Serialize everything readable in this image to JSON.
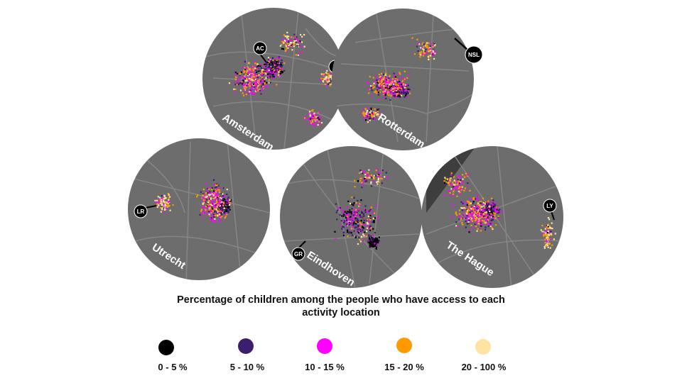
{
  "cities": [
    {
      "name": "Amsterdam",
      "marker": "AC",
      "marker2": "IJ"
    },
    {
      "name": "Rotterdam",
      "marker": "NSL"
    },
    {
      "name": "Utrecht",
      "marker": "LR"
    },
    {
      "name": "Eindhoven",
      "marker": "GR"
    },
    {
      "name": "The Hague",
      "marker": "LY"
    }
  ],
  "caption": "Percentage of children among the people who have access to each activity location",
  "legend": [
    {
      "label": "0 - 5 %",
      "color": "#000000"
    },
    {
      "label": "5 - 10 %",
      "color": "#3b1f6e"
    },
    {
      "label": "10 - 15 %",
      "color": "#ff00ff"
    },
    {
      "label": "15 - 20 %",
      "color": "#ff9900"
    },
    {
      "label": "20 - 100 %",
      "color": "#ffe3a0"
    }
  ]
}
